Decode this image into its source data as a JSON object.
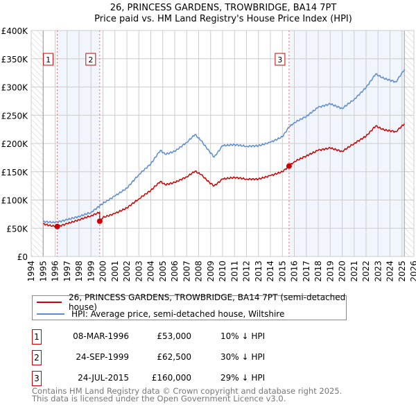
{
  "chart_data": {
    "type": "line",
    "title": "26, PRINCESS GARDENS, TROWBRIDGE, BA14 7PT",
    "subtitle": "Price paid vs. HM Land Registry's House Price Index (HPI)",
    "xlim": [
      1994,
      2026
    ],
    "ylim": [
      0,
      400000
    ],
    "x_ticks": [
      "1994",
      "1995",
      "1996",
      "1997",
      "1998",
      "1999",
      "2000",
      "2001",
      "2002",
      "2003",
      "2004",
      "2005",
      "2006",
      "2007",
      "2008",
      "2009",
      "2010",
      "2011",
      "2012",
      "2013",
      "2014",
      "2015",
      "2016",
      "2017",
      "2018",
      "2019",
      "2020",
      "2021",
      "2022",
      "2023",
      "2024",
      "2025",
      "2026"
    ],
    "y_ticks": [
      {
        "v": 0,
        "label": "£0"
      },
      {
        "v": 50000,
        "label": "£50K"
      },
      {
        "v": 100000,
        "label": "£100K"
      },
      {
        "v": 150000,
        "label": "£150K"
      },
      {
        "v": 200000,
        "label": "£200K"
      },
      {
        "v": 250000,
        "label": "£250K"
      },
      {
        "v": 300000,
        "label": "£300K"
      },
      {
        "v": 350000,
        "label": "£350K"
      },
      {
        "v": 400000,
        "label": "£400K"
      }
    ],
    "grid": true,
    "series": [
      {
        "name": "26, PRINCESS GARDENS, TROWBRIDGE, BA14 7PT (semi-detached house)",
        "color": "#cc0000",
        "x": [
          1995,
          1995.5,
          1996.18,
          1997,
          1998,
          1999,
          1999.72,
          1999.73,
          2000,
          2001,
          2002,
          2003,
          2004,
          2004.8,
          2005.2,
          2006,
          2007,
          2007.7,
          2008.2,
          2008.9,
          2009.3,
          2010,
          2011,
          2012,
          2013,
          2014,
          2015,
          2015.56,
          2016,
          2017,
          2018,
          2019,
          2020,
          2021,
          2022,
          2022.8,
          2023.5,
          2024.5,
          2025.2
        ],
        "y": [
          58000,
          55000,
          53000,
          58000,
          65000,
          72000,
          78000,
          62500,
          69000,
          76000,
          86000,
          102000,
          117000,
          133000,
          127000,
          131000,
          141000,
          151000,
          145000,
          131000,
          125000,
          137000,
          140000,
          137000,
          137000,
          143000,
          150000,
          160000,
          168000,
          178000,
          188000,
          192000,
          186000,
          200000,
          213000,
          231000,
          224000,
          221000,
          235000
        ]
      },
      {
        "name": "HPI: Average price, semi-detached house, Wiltshire",
        "color": "#5b8bd0",
        "x": [
          1995,
          1996,
          1997,
          1998,
          1999,
          2000,
          2001,
          2002,
          2003,
          2004,
          2004.8,
          2005.2,
          2006,
          2007,
          2007.7,
          2008.2,
          2008.9,
          2009.3,
          2010,
          2011,
          2012,
          2013,
          2014,
          2015,
          2015.56,
          2016,
          2017,
          2018,
          2019,
          2020,
          2021,
          2022,
          2022.8,
          2023.5,
          2024.5,
          2025.2
        ],
        "y": [
          62000,
          60000,
          65000,
          71000,
          78000,
          94000,
          107000,
          121000,
          145000,
          164000,
          188000,
          181000,
          186000,
          202000,
          216000,
          205000,
          186000,
          176000,
          196000,
          198000,
          195000,
          196000,
          202000,
          212000,
          229000,
          237000,
          248000,
          264000,
          270000,
          262000,
          278000,
          299000,
          323000,
          315000,
          309000,
          331000
        ]
      }
    ],
    "sales": [
      {
        "num": "1",
        "x": 1996.18,
        "y": 53000,
        "date": "08-MAR-1996",
        "price": "£53,000",
        "hpi": "10% ↓ HPI"
      },
      {
        "num": "2",
        "x": 1999.73,
        "y": 62500,
        "date": "24-SEP-1999",
        "price": "£62,500",
        "hpi": "30% ↓ HPI"
      },
      {
        "num": "3",
        "x": 2015.56,
        "y": 160000,
        "date": "24-JUL-2015",
        "price": "£160,000",
        "hpi": "29% ↓ HPI"
      }
    ],
    "legend_position": "bottom"
  },
  "footer": {
    "line1": "Contains HM Land Registry data © Crown copyright and database right 2025.",
    "line2": "This data is licensed under the Open Government Licence v3.0."
  }
}
